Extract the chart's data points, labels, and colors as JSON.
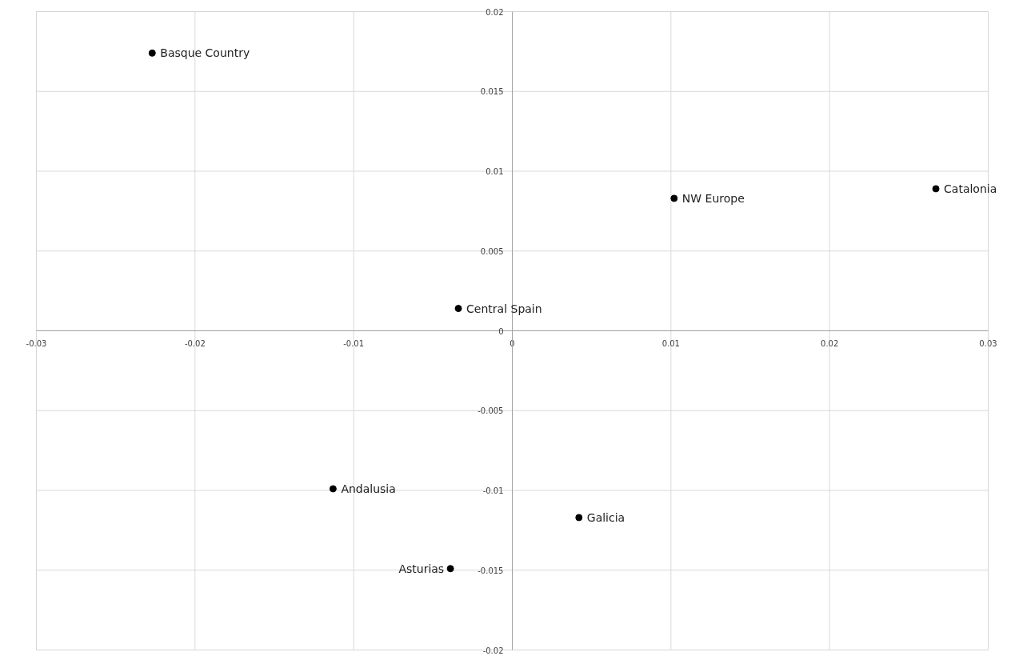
{
  "chart_data": {
    "type": "scatter",
    "x": [
      -0.0227,
      0.0102,
      0.0267,
      -0.0034,
      -0.0113,
      0.0042,
      -0.0039
    ],
    "series": [
      {
        "color": "#000000",
        "values": [
          0.0174,
          0.0083,
          0.0089,
          0.0014,
          -0.0099,
          -0.0117,
          -0.0149
        ]
      }
    ],
    "annotations": [
      {
        "text": "Basque Country",
        "x": -0.0227,
        "y": 0.0174
      },
      {
        "text": "NW Europe",
        "x": 0.0102,
        "y": 0.0083
      },
      {
        "text": "Catalonia",
        "x": 0.0267,
        "y": 0.0089
      },
      {
        "text": "Central Spain",
        "x": -0.0034,
        "y": 0.0014
      },
      {
        "text": "Andalusia",
        "x": -0.0113,
        "y": -0.0099
      },
      {
        "text": "Galicia",
        "x": 0.0042,
        "y": -0.0117
      },
      {
        "text": "Asturias",
        "x": -0.0039,
        "y": -0.0149
      }
    ],
    "xlim": [
      -0.03,
      0.03
    ],
    "xticks": [
      -0.03,
      -0.02,
      -0.01,
      0,
      0.01,
      0.02,
      0.03
    ],
    "ylim": [
      -0.02,
      0.02
    ],
    "yticks": [
      -0.02,
      -0.015,
      -0.01,
      -0.005,
      0,
      0.005,
      0.01,
      0.015,
      0.02
    ],
    "grid": true,
    "marker": "circle"
  }
}
